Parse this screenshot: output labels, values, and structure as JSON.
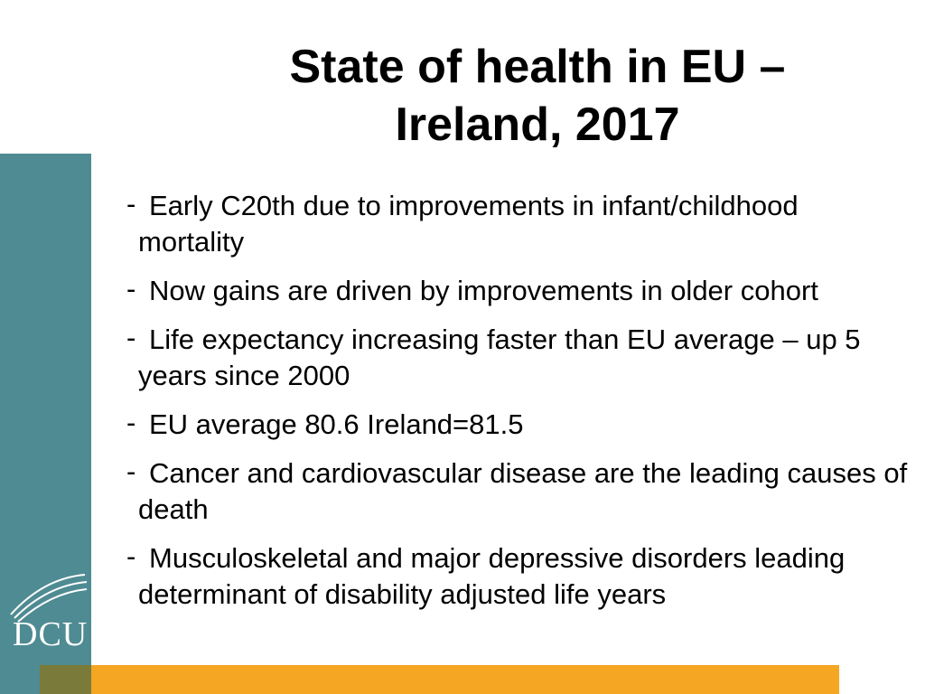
{
  "slide": {
    "title_line1": "State of health in EU –",
    "title_line2": "Ireland, 2017",
    "bullet_marker": "-",
    "bullets": [
      "Early C20th due to improvements in infant/childhood mortality",
      "Now gains are driven by improvements in older cohort",
      "Life expectancy increasing faster than EU average – up 5 years since 2000",
      "EU average 80.6 Ireland=81.5",
      "Cancer and cardiovascular disease are the leading causes of death",
      "Musculoskeletal and major depressive disorders leading determinant of disability adjusted life years"
    ]
  },
  "branding": {
    "logo_text": "DCU",
    "logo_icon": "dcu-swoosh-logo"
  },
  "colors": {
    "side_bar": "#4f8b92",
    "bottom_band": "#f5a623",
    "bottom_olive": "#7a7a3a"
  }
}
